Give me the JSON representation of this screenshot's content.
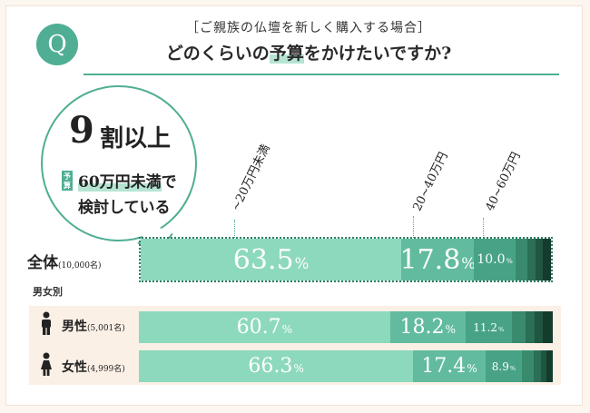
{
  "header": {
    "q_label": "Q",
    "subtitle": "［ご親族の仏壇を新しく購入する場合］",
    "title_pre": "どのくらいの",
    "title_hl": "予算",
    "title_post": "をかけたいですか?"
  },
  "callout": {
    "number": "9",
    "rest": "割以上",
    "tag": "予算",
    "line2_hl": "60万円未満",
    "line2_post": "で",
    "line3": "検討している"
  },
  "section_label": "男女別",
  "column_labels": [
    "~20万円未満",
    "20~40万円",
    "40~60万円"
  ],
  "colors": {
    "accent": "#4fae94",
    "segments": [
      "#8dd9bd",
      "#62bb9e",
      "#48a386",
      "#3a8a6e",
      "#2b6f57",
      "#1f5541",
      "#133c2d"
    ]
  },
  "chart_data": {
    "type": "bar",
    "orientation": "horizontal",
    "stacked": true,
    "categories": [
      "~20万円未満",
      "20~40万円",
      "40~60万円",
      "",
      "",
      "",
      ""
    ],
    "unit": "%",
    "rows": [
      {
        "key": "total",
        "label": "全体",
        "n": "(10,000名)",
        "values": [
          63.5,
          17.8,
          10.0,
          3.0,
          2.0,
          1.7,
          2.0
        ],
        "labels": [
          "63.5",
          "17.8",
          "10.0",
          "",
          "",
          "",
          ""
        ]
      },
      {
        "key": "male",
        "label": "男性",
        "n": "(5,001名)",
        "values": [
          60.7,
          18.2,
          11.2,
          3.3,
          2.3,
          2.0,
          2.3
        ],
        "labels": [
          "60.7",
          "18.2",
          "11.2",
          "",
          "",
          "",
          ""
        ]
      },
      {
        "key": "female",
        "label": "女性",
        "n": "(4,999名)",
        "values": [
          66.3,
          17.4,
          8.9,
          2.7,
          1.8,
          1.4,
          1.5
        ],
        "labels": [
          "66.3",
          "17.4",
          "8.9",
          "",
          "",
          "",
          ""
        ]
      }
    ]
  }
}
